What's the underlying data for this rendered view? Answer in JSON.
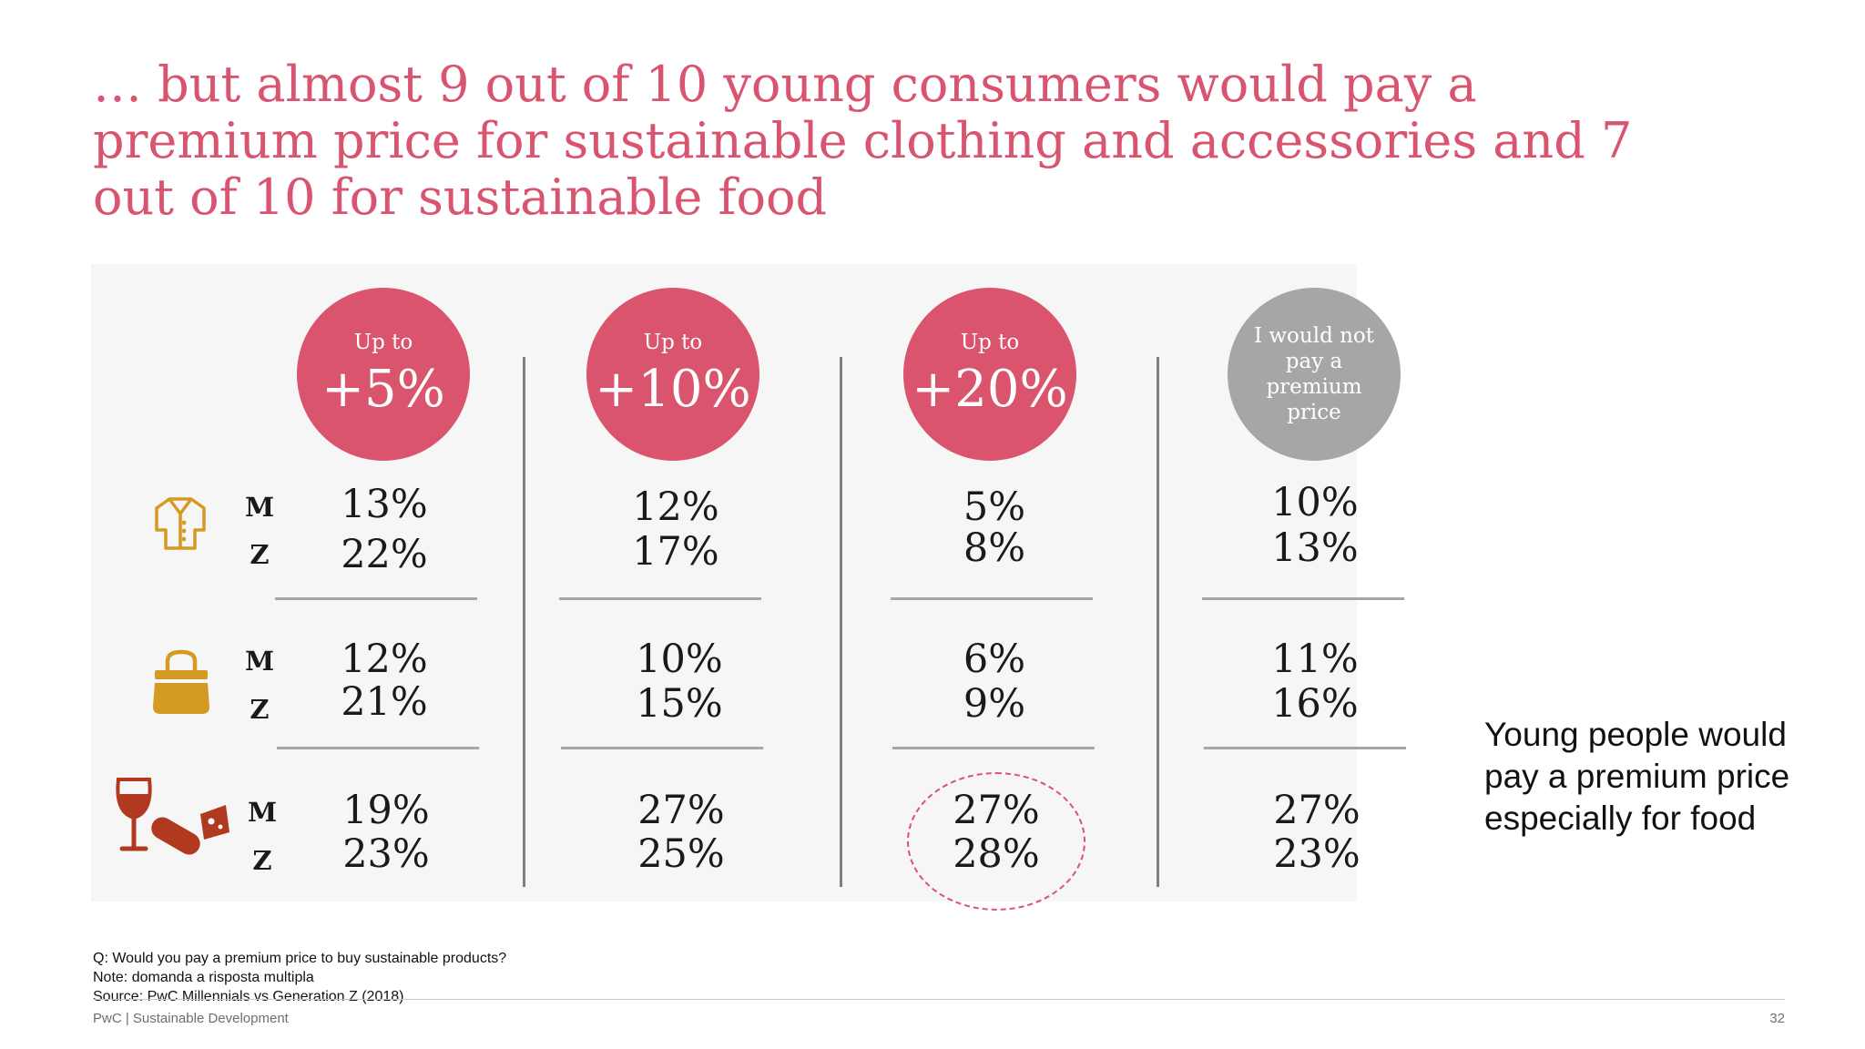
{
  "title": "… but almost 9 out of 10 young consumers would pay a premium price for sustainable clothing and accessories and 7 out of 10 for sustainable food",
  "columns": [
    {
      "up_to": "Up to",
      "value": "+5%"
    },
    {
      "up_to": "Up to",
      "value": "+10%"
    },
    {
      "up_to": "Up to",
      "value": "+20%"
    },
    {
      "label": "I would not pay a premium price"
    }
  ],
  "row_labels": {
    "m": "M",
    "z": "Z"
  },
  "rows": [
    {
      "category_icon": "shirt-icon",
      "m": [
        "13%",
        "12%",
        "5%",
        "10%"
      ],
      "z": [
        "22%",
        "17%",
        "8%",
        "13%"
      ]
    },
    {
      "category_icon": "handbag-icon",
      "m": [
        "12%",
        "10%",
        "6%",
        "11%"
      ],
      "z": [
        "21%",
        "15%",
        "9%",
        "16%"
      ]
    },
    {
      "category_icon": "food-icon",
      "m": [
        "19%",
        "27%",
        "27%",
        "27%"
      ],
      "z": [
        "23%",
        "25%",
        "28%",
        "23%"
      ]
    }
  ],
  "side_note": "Young people would pay a premium price especially for food",
  "notes": {
    "question": "Q: Would you pay a premium price to buy sustainable products?",
    "note": "Note: domanda a risposta multipla",
    "source": "Source:  PwC Millennials vs Generation Z (2018)"
  },
  "footer": {
    "left": "PwC | Sustainable Development",
    "page": "32"
  },
  "colors": {
    "accent": "#d9546c",
    "neutral": "#a6a6a8",
    "icon_gold": "#d59a24",
    "icon_red": "#b0391f"
  }
}
